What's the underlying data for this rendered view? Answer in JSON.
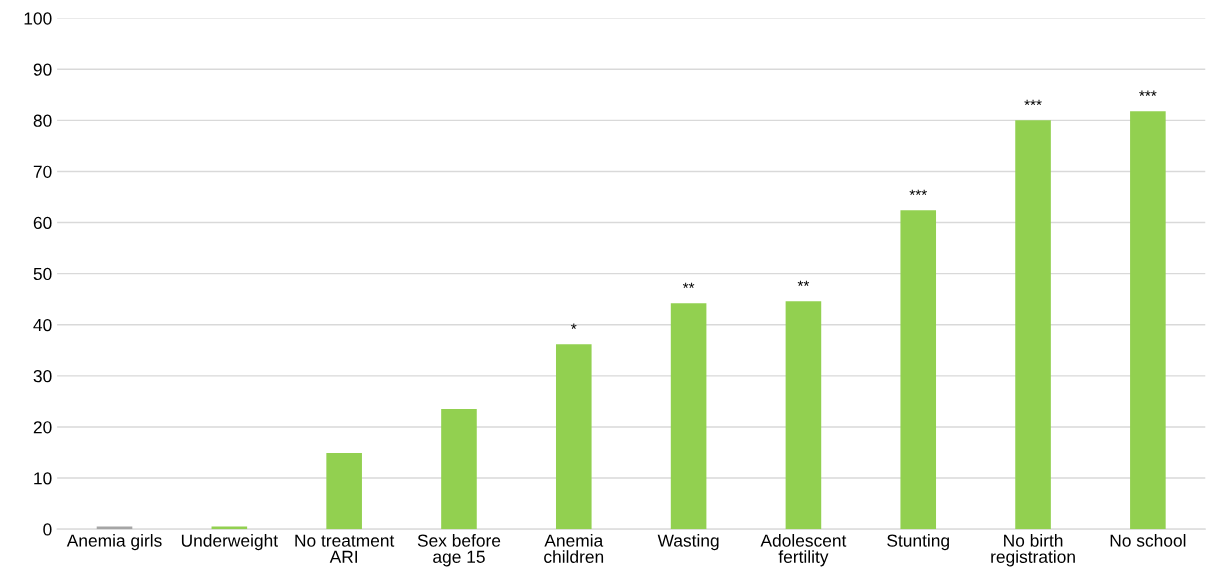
{
  "chart_data": {
    "type": "bar",
    "categories": [
      "Anemia girls",
      "Underweight",
      "No treatment\nARI",
      "Sex before\nage 15",
      "Anemia\nchildren",
      "Wasting",
      "Adolescent\nfertility",
      "Stunting",
      "No birth\nregistration",
      "No school"
    ],
    "values": [
      0.5,
      0.5,
      14.9,
      23.5,
      36.2,
      44.2,
      44.6,
      62.4,
      80.0,
      81.8
    ],
    "colors": [
      "#a5a5a5",
      "#92d050",
      "#92d050",
      "#92d050",
      "#92d050",
      "#92d050",
      "#92d050",
      "#92d050",
      "#92d050",
      "#92d050"
    ],
    "value_labels": [
      null,
      null,
      null,
      null,
      "*",
      "**",
      "**",
      "***",
      "***",
      "***"
    ],
    "ylim": [
      0,
      100
    ],
    "yticks": [
      0,
      10,
      20,
      30,
      40,
      50,
      60,
      70,
      80,
      90,
      100
    ],
    "grid": "y"
  }
}
